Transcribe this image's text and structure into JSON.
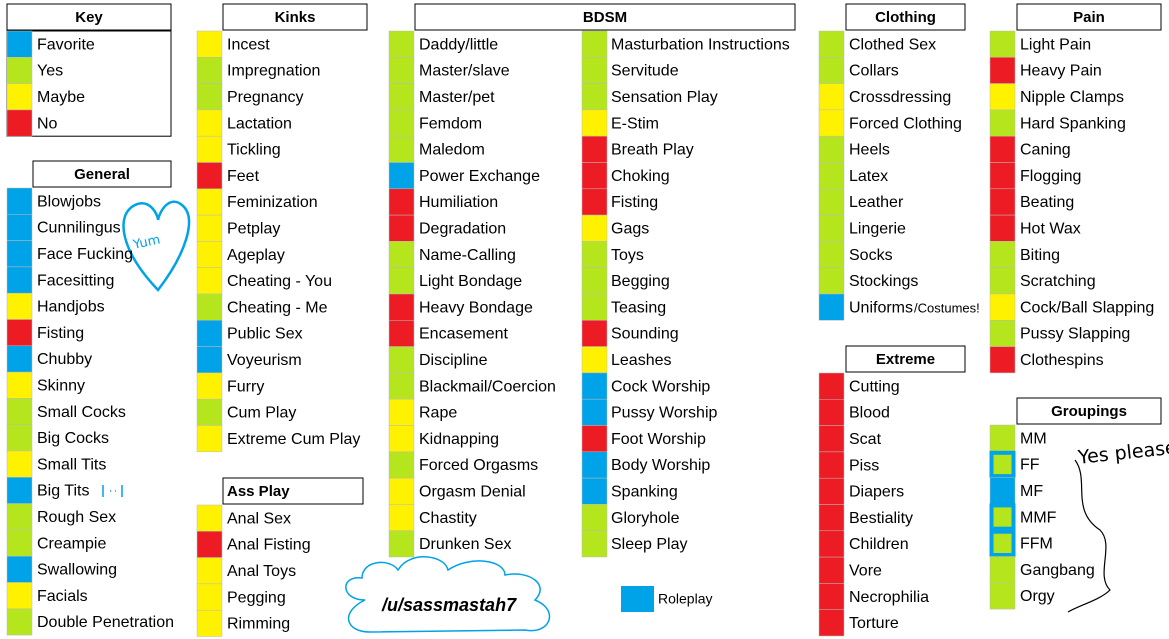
{
  "sections": [
    {
      "title": "Key",
      "items": [
        {
          "label": "Favorite",
          "color": "#00a2e8"
        },
        {
          "label": "Yes",
          "color": "#b5e61d"
        },
        {
          "label": "Maybe",
          "color": "#fff200"
        },
        {
          "label": "No",
          "color": "#ed1c24"
        }
      ]
    },
    {
      "title": "General",
      "items": [
        {
          "label": "Blowjobs",
          "color": "#00a2e8"
        },
        {
          "label": "Cunnilingus",
          "color": "#00a2e8"
        },
        {
          "label": "Face Fucking",
          "color": "#00a2e8"
        },
        {
          "label": "Facesitting",
          "color": "#00a2e8"
        },
        {
          "label": "Handjobs",
          "color": "#fff200"
        },
        {
          "label": "Fisting",
          "color": "#ed1c24"
        },
        {
          "label": "Chubby",
          "color": "#00a2e8"
        },
        {
          "label": "Skinny",
          "color": "#fff200"
        },
        {
          "label": "Small Cocks",
          "color": "#b5e61d"
        },
        {
          "label": "Big Cocks",
          "color": "#b5e61d"
        },
        {
          "label": "Small Tits",
          "color": "#fff200"
        },
        {
          "label": "Big Tits",
          "color": "#00a2e8"
        },
        {
          "label": "Rough Sex",
          "color": "#b5e61d"
        },
        {
          "label": "Creampie",
          "color": "#b5e61d"
        },
        {
          "label": "Swallowing",
          "color": "#00a2e8"
        },
        {
          "label": "Facials",
          "color": "#fff200"
        },
        {
          "label": "Double Penetration",
          "color": "#b5e61d"
        }
      ]
    },
    {
      "title": "Kinks",
      "items": [
        {
          "label": "Incest",
          "color": "#fff200"
        },
        {
          "label": "Impregnation",
          "color": "#b5e61d"
        },
        {
          "label": "Pregnancy",
          "color": "#b5e61d"
        },
        {
          "label": "Lactation",
          "color": "#fff200"
        },
        {
          "label": "Tickling",
          "color": "#fff200"
        },
        {
          "label": "Feet",
          "color": "#ed1c24"
        },
        {
          "label": "Feminization",
          "color": "#fff200"
        },
        {
          "label": "Petplay",
          "color": "#fff200"
        },
        {
          "label": "Ageplay",
          "color": "#fff200"
        },
        {
          "label": "Cheating - You",
          "color": "#fff200"
        },
        {
          "label": "Cheating - Me",
          "color": "#b5e61d"
        },
        {
          "label": "Public Sex",
          "color": "#00a2e8"
        },
        {
          "label": "Voyeurism",
          "color": "#00a2e8"
        },
        {
          "label": "Furry",
          "color": "#fff200"
        },
        {
          "label": "Cum Play",
          "color": "#b5e61d"
        },
        {
          "label": "Extreme Cum Play",
          "color": "#fff200"
        }
      ]
    },
    {
      "title": "Ass Play",
      "items": [
        {
          "label": "Anal Sex",
          "color": "#fff200"
        },
        {
          "label": "Anal Fisting",
          "color": "#ed1c24"
        },
        {
          "label": "Anal Toys",
          "color": "#fff200"
        },
        {
          "label": "Pegging",
          "color": "#fff200"
        },
        {
          "label": "Rimming",
          "color": "#fff200"
        }
      ]
    },
    {
      "title": "BDSM",
      "items": [
        {
          "label": "Daddy/little",
          "color": "#b5e61d"
        },
        {
          "label": "Master/slave",
          "color": "#b5e61d"
        },
        {
          "label": "Master/pet",
          "color": "#b5e61d"
        },
        {
          "label": "Femdom",
          "color": "#b5e61d"
        },
        {
          "label": "Maledom",
          "color": "#b5e61d"
        },
        {
          "label": "Power Exchange",
          "color": "#00a2e8"
        },
        {
          "label": "Humiliation",
          "color": "#ed1c24"
        },
        {
          "label": "Degradation",
          "color": "#ed1c24"
        },
        {
          "label": "Name-Calling",
          "color": "#b5e61d"
        },
        {
          "label": "Light Bondage",
          "color": "#b5e61d"
        },
        {
          "label": "Heavy Bondage",
          "color": "#ed1c24"
        },
        {
          "label": "Encasement",
          "color": "#ed1c24"
        },
        {
          "label": "Discipline",
          "color": "#b5e61d"
        },
        {
          "label": "Blackmail/Coercion",
          "color": "#b5e61d"
        },
        {
          "label": "Rape",
          "color": "#fff200"
        },
        {
          "label": "Kidnapping",
          "color": "#fff200"
        },
        {
          "label": "Forced Orgasms",
          "color": "#b5e61d"
        },
        {
          "label": "Orgasm Denial",
          "color": "#fff200"
        },
        {
          "label": "Chastity",
          "color": "#fff200"
        },
        {
          "label": "Drunken Sex",
          "color": "#b5e61d"
        },
        {
          "label": "Masturbation Instructions",
          "color": "#b5e61d"
        },
        {
          "label": "Servitude",
          "color": "#b5e61d"
        },
        {
          "label": "Sensation Play",
          "color": "#b5e61d"
        },
        {
          "label": "E-Stim",
          "color": "#fff200"
        },
        {
          "label": "Breath Play",
          "color": "#ed1c24"
        },
        {
          "label": "Choking",
          "color": "#ed1c24"
        },
        {
          "label": "Fisting",
          "color": "#ed1c24"
        },
        {
          "label": "Gags",
          "color": "#fff200"
        },
        {
          "label": "Toys",
          "color": "#b5e61d"
        },
        {
          "label": "Begging",
          "color": "#b5e61d"
        },
        {
          "label": "Teasing",
          "color": "#b5e61d"
        },
        {
          "label": "Sounding",
          "color": "#ed1c24"
        },
        {
          "label": "Leashes",
          "color": "#fff200"
        },
        {
          "label": "Cock Worship",
          "color": "#00a2e8"
        },
        {
          "label": "Pussy Worship",
          "color": "#00a2e8"
        },
        {
          "label": "Foot Worship",
          "color": "#ed1c24"
        },
        {
          "label": "Body Worship",
          "color": "#00a2e8"
        },
        {
          "label": "Spanking",
          "color": "#00a2e8"
        },
        {
          "label": "Gloryhole",
          "color": "#b5e61d"
        },
        {
          "label": "Sleep Play",
          "color": "#b5e61d"
        }
      ]
    },
    {
      "title": "Clothing",
      "items": [
        {
          "label": "Clothed Sex",
          "color": "#b5e61d"
        },
        {
          "label": "Collars",
          "color": "#b5e61d"
        },
        {
          "label": "Crossdressing",
          "color": "#fff200"
        },
        {
          "label": "Forced Clothing",
          "color": "#fff200"
        },
        {
          "label": "Heels",
          "color": "#b5e61d"
        },
        {
          "label": "Latex",
          "color": "#b5e61d"
        },
        {
          "label": "Leather",
          "color": "#b5e61d"
        },
        {
          "label": "Lingerie",
          "color": "#b5e61d"
        },
        {
          "label": "Socks",
          "color": "#b5e61d"
        },
        {
          "label": "Stockings",
          "color": "#b5e61d"
        },
        {
          "label": "Uniforms",
          "color": "#00a2e8"
        }
      ]
    },
    {
      "title": "Extreme",
      "items": [
        {
          "label": "Cutting",
          "color": "#ed1c24"
        },
        {
          "label": "Blood",
          "color": "#ed1c24"
        },
        {
          "label": "Scat",
          "color": "#ed1c24"
        },
        {
          "label": "Piss",
          "color": "#ed1c24"
        },
        {
          "label": "Diapers",
          "color": "#ed1c24"
        },
        {
          "label": "Bestiality",
          "color": "#ed1c24"
        },
        {
          "label": "Children",
          "color": "#ed1c24"
        },
        {
          "label": "Vore",
          "color": "#ed1c24"
        },
        {
          "label": "Necrophilia",
          "color": "#ed1c24"
        },
        {
          "label": "Torture",
          "color": "#ed1c24"
        }
      ]
    },
    {
      "title": "Pain",
      "items": [
        {
          "label": "Light Pain",
          "color": "#b5e61d"
        },
        {
          "label": "Heavy Pain",
          "color": "#ed1c24"
        },
        {
          "label": "Nipple Clamps",
          "color": "#fff200"
        },
        {
          "label": "Hard Spanking",
          "color": "#b5e61d"
        },
        {
          "label": "Caning",
          "color": "#ed1c24"
        },
        {
          "label": "Flogging",
          "color": "#ed1c24"
        },
        {
          "label": "Beating",
          "color": "#ed1c24"
        },
        {
          "label": "Hot Wax",
          "color": "#ed1c24"
        },
        {
          "label": "Biting",
          "color": "#b5e61d"
        },
        {
          "label": "Scratching",
          "color": "#b5e61d"
        },
        {
          "label": "Cock/Ball Slapping",
          "color": "#fff200"
        },
        {
          "label": "Pussy Slapping",
          "color": "#b5e61d"
        },
        {
          "label": "Clothespins",
          "color": "#ed1c24"
        }
      ]
    },
    {
      "title": "Groupings",
      "items": [
        {
          "label": "MM",
          "color": "#b5e61d"
        },
        {
          "label": "FF",
          "color": "#b5e61d",
          "outline": "#00a2e8"
        },
        {
          "label": "MF",
          "color": "#00a2e8"
        },
        {
          "label": "MMF",
          "color": "#b5e61d",
          "outline": "#00a2e8"
        },
        {
          "label": "FFM",
          "color": "#b5e61d",
          "outline": "#00a2e8"
        },
        {
          "label": "Gangbang",
          "color": "#b5e61d"
        },
        {
          "label": "Orgy",
          "color": "#b5e61d"
        }
      ]
    }
  ],
  "annotations": {
    "yum": "Yum",
    "costumes": "/Costumes!",
    "yes_please": "Yes please",
    "author": "/u/sassmastah7",
    "roleplay": "Roleplay",
    "roleplay_color": "#00a2e8"
  }
}
